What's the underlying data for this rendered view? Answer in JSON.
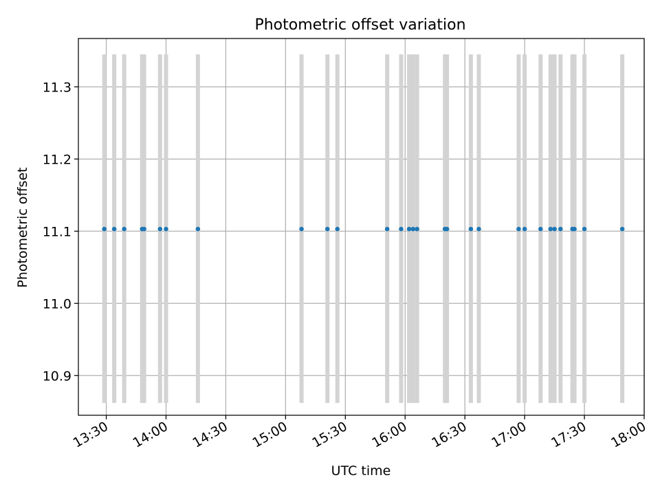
{
  "chart_data": {
    "type": "scatter",
    "title": "Photometric offset variation",
    "xlabel": "UTC time",
    "ylabel": "Photometric offset",
    "xlim": [
      "13:16",
      "18:00"
    ],
    "ylim": [
      10.845,
      11.367
    ],
    "grid": true,
    "x_ticks": [
      "13:30",
      "14:00",
      "14:30",
      "15:00",
      "15:30",
      "16:00",
      "16:30",
      "17:00",
      "17:30",
      "18:00"
    ],
    "y_ticks": [
      "10.9",
      "11.0",
      "11.1",
      "11.2",
      "11.3"
    ],
    "error_bar": {
      "low": 10.862,
      "high": 11.345
    },
    "colors": {
      "points": "#1f77b4",
      "error_bars": "#d3d3d3",
      "grid": "#b0b0b0"
    },
    "points": [
      {
        "x": "13:29",
        "y": 11.103
      },
      {
        "x": "13:34",
        "y": 11.103
      },
      {
        "x": "13:39",
        "y": 11.103
      },
      {
        "x": "13:48",
        "y": 11.103
      },
      {
        "x": "13:49",
        "y": 11.103
      },
      {
        "x": "13:57",
        "y": 11.103
      },
      {
        "x": "14:00",
        "y": 11.103
      },
      {
        "x": "14:16",
        "y": 11.103
      },
      {
        "x": "15:08",
        "y": 11.103
      },
      {
        "x": "15:21",
        "y": 11.103
      },
      {
        "x": "15:26",
        "y": 11.103
      },
      {
        "x": "15:51",
        "y": 11.103
      },
      {
        "x": "15:58",
        "y": 11.103
      },
      {
        "x": "16:02",
        "y": 11.103
      },
      {
        "x": "16:04",
        "y": 11.103
      },
      {
        "x": "16:06",
        "y": 11.103
      },
      {
        "x": "16:20",
        "y": 11.103
      },
      {
        "x": "16:21",
        "y": 11.103
      },
      {
        "x": "16:33",
        "y": 11.103
      },
      {
        "x": "16:37",
        "y": 11.103
      },
      {
        "x": "16:57",
        "y": 11.103
      },
      {
        "x": "17:00",
        "y": 11.103
      },
      {
        "x": "17:08",
        "y": 11.103
      },
      {
        "x": "17:13",
        "y": 11.103
      },
      {
        "x": "17:15",
        "y": 11.103
      },
      {
        "x": "17:18",
        "y": 11.103
      },
      {
        "x": "17:24",
        "y": 11.103
      },
      {
        "x": "17:25",
        "y": 11.103
      },
      {
        "x": "17:30",
        "y": 11.103
      },
      {
        "x": "17:49",
        "y": 11.103
      }
    ]
  }
}
